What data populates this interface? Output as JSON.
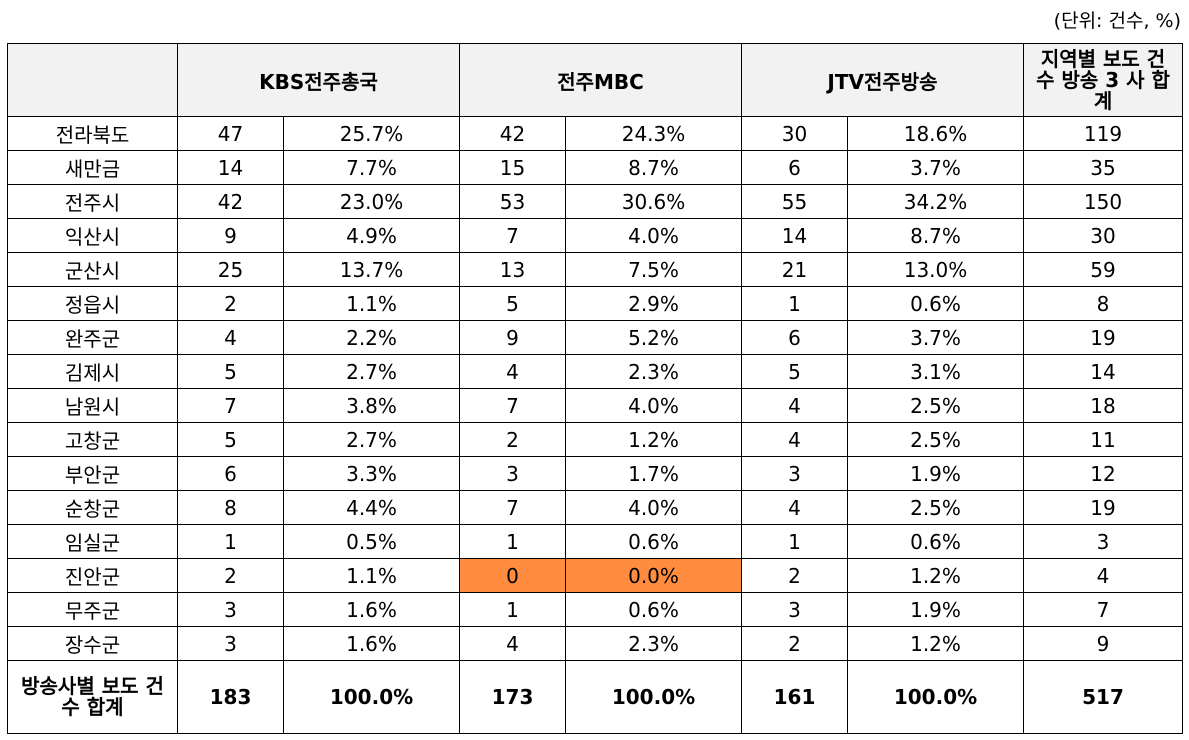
{
  "unit_note": "(단위: 건수, %)",
  "headers": {
    "blank": "",
    "kbs": "KBS전주총국",
    "mbc": "전주MBC",
    "jtv": "JTV전주방송",
    "total": "지역별 보도 건수 방송 3 사 합계"
  },
  "rows": [
    {
      "region": "전라북도",
      "kbs_n": "47",
      "kbs_p": "25.7%",
      "mbc_n": "42",
      "mbc_p": "24.3%",
      "jtv_n": "30",
      "jtv_p": "18.6%",
      "total": "119"
    },
    {
      "region": "새만금",
      "kbs_n": "14",
      "kbs_p": "7.7%",
      "mbc_n": "15",
      "mbc_p": "8.7%",
      "jtv_n": "6",
      "jtv_p": "3.7%",
      "total": "35"
    },
    {
      "region": "전주시",
      "kbs_n": "42",
      "kbs_p": "23.0%",
      "mbc_n": "53",
      "mbc_p": "30.6%",
      "jtv_n": "55",
      "jtv_p": "34.2%",
      "total": "150"
    },
    {
      "region": "익산시",
      "kbs_n": "9",
      "kbs_p": "4.9%",
      "mbc_n": "7",
      "mbc_p": "4.0%",
      "jtv_n": "14",
      "jtv_p": "8.7%",
      "total": "30"
    },
    {
      "region": "군산시",
      "kbs_n": "25",
      "kbs_p": "13.7%",
      "mbc_n": "13",
      "mbc_p": "7.5%",
      "jtv_n": "21",
      "jtv_p": "13.0%",
      "total": "59"
    },
    {
      "region": "정읍시",
      "kbs_n": "2",
      "kbs_p": "1.1%",
      "mbc_n": "5",
      "mbc_p": "2.9%",
      "jtv_n": "1",
      "jtv_p": "0.6%",
      "total": "8"
    },
    {
      "region": "완주군",
      "kbs_n": "4",
      "kbs_p": "2.2%",
      "mbc_n": "9",
      "mbc_p": "5.2%",
      "jtv_n": "6",
      "jtv_p": "3.7%",
      "total": "19"
    },
    {
      "region": "김제시",
      "kbs_n": "5",
      "kbs_p": "2.7%",
      "mbc_n": "4",
      "mbc_p": "2.3%",
      "jtv_n": "5",
      "jtv_p": "3.1%",
      "total": "14"
    },
    {
      "region": "남원시",
      "kbs_n": "7",
      "kbs_p": "3.8%",
      "mbc_n": "7",
      "mbc_p": "4.0%",
      "jtv_n": "4",
      "jtv_p": "2.5%",
      "total": "18"
    },
    {
      "region": "고창군",
      "kbs_n": "5",
      "kbs_p": "2.7%",
      "mbc_n": "2",
      "mbc_p": "1.2%",
      "jtv_n": "4",
      "jtv_p": "2.5%",
      "total": "11"
    },
    {
      "region": "부안군",
      "kbs_n": "6",
      "kbs_p": "3.3%",
      "mbc_n": "3",
      "mbc_p": "1.7%",
      "jtv_n": "3",
      "jtv_p": "1.9%",
      "total": "12"
    },
    {
      "region": "순창군",
      "kbs_n": "8",
      "kbs_p": "4.4%",
      "mbc_n": "7",
      "mbc_p": "4.0%",
      "jtv_n": "4",
      "jtv_p": "2.5%",
      "total": "19"
    },
    {
      "region": "임실군",
      "kbs_n": "1",
      "kbs_p": "0.5%",
      "mbc_n": "1",
      "mbc_p": "0.6%",
      "jtv_n": "1",
      "jtv_p": "0.6%",
      "total": "3"
    },
    {
      "region": "진안군",
      "kbs_n": "2",
      "kbs_p": "1.1%",
      "mbc_n": "0",
      "mbc_p": "0.0%",
      "jtv_n": "2",
      "jtv_p": "1.2%",
      "total": "4"
    },
    {
      "region": "무주군",
      "kbs_n": "3",
      "kbs_p": "1.6%",
      "mbc_n": "1",
      "mbc_p": "0.6%",
      "jtv_n": "3",
      "jtv_p": "1.9%",
      "total": "7"
    },
    {
      "region": "장수군",
      "kbs_n": "3",
      "kbs_p": "1.6%",
      "mbc_n": "4",
      "mbc_p": "2.3%",
      "jtv_n": "2",
      "jtv_p": "1.2%",
      "total": "9"
    }
  ],
  "totals": {
    "label": "방송사별 보도 건수 합계",
    "kbs_n": "183",
    "kbs_p": "100.0%",
    "mbc_n": "173",
    "mbc_p": "100.0%",
    "jtv_n": "161",
    "jtv_p": "100.0%",
    "total": "517"
  },
  "highlight_color": "#ff8c3f"
}
